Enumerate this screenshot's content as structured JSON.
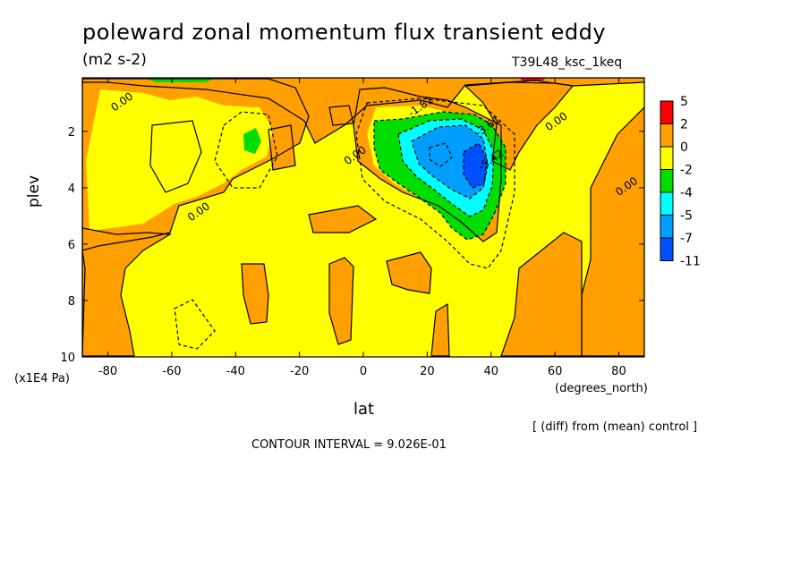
{
  "header": {
    "title": "poleward zonal momentum flux transient eddy",
    "units": "(m2 s-2)",
    "run_id": "T39L48_ksc_1keq"
  },
  "footer": {
    "diff_note": "[ (diff) from (mean) control ]",
    "contour_interval": "CONTOUR INTERVAL = 9.026E-01"
  },
  "colors": {
    "c_pos": "#ff0000",
    "c_0_2": "#ff9f00",
    "c_m2_0": "#ffff00",
    "c_m4_m2": "#00dd00",
    "c_m5_m4": "#00ffff",
    "c_m7_m5": "#009fff",
    "c_m11_m7": "#0050ff"
  },
  "chart_data": {
    "type": "heatmap",
    "title": "poleward zonal momentum flux transient eddy",
    "subtitle": "(m2 s-2)",
    "xlabel": "lat",
    "xlabel_units": "(degrees_north)",
    "ylabel": "plev",
    "ylabel_units": "(x1E4 Pa)",
    "xlim": [
      -88,
      88
    ],
    "ylim": [
      10,
      0.1
    ],
    "x_ticks": [
      -80,
      -60,
      -40,
      -20,
      0,
      20,
      40,
      60,
      80
    ],
    "y_ticks": [
      2,
      4,
      6,
      8,
      10
    ],
    "colorbar_levels": [
      "5",
      "2",
      "0",
      "-2",
      "-4",
      "-5",
      "-7",
      "-11"
    ],
    "colorbar_colors": [
      "#ff0000",
      "#ff9f00",
      "#ffff00",
      "#00dd00",
      "#00ffff",
      "#009fff",
      "#0050ff"
    ],
    "contour_labels": [
      {
        "text": "0.00",
        "lat": -78,
        "plev": 1.3
      },
      {
        "text": "0.00",
        "lat": -54,
        "plev": 5.2
      },
      {
        "text": "0.00",
        "lat": -5,
        "plev": 3.2
      },
      {
        "text": "0.00",
        "lat": 58,
        "plev": 2.0
      },
      {
        "text": "0.00",
        "lat": 80,
        "plev": 4.3
      },
      {
        "text": "-1.81",
        "lat": 15,
        "plev": 1.5
      },
      {
        "text": "-3.61",
        "lat": 36,
        "plev": 2.2
      },
      {
        "text": "-5.42",
        "lat": 37,
        "plev": 3.4
      }
    ],
    "features": [
      {
        "name": "negative maximum",
        "lat_center": 33,
        "plev_center": 3.0,
        "min_level": "-11"
      },
      {
        "name": "small negative patch",
        "lat_center": -34,
        "plev_center": 2.3,
        "level": "-4"
      }
    ]
  }
}
